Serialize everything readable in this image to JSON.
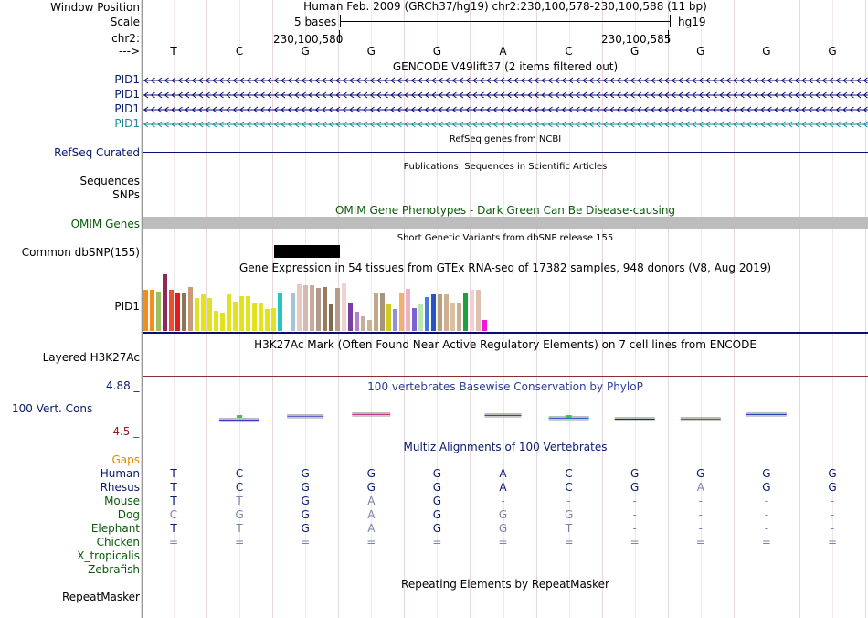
{
  "ruler": {
    "labels": {
      "window_position": "Window Position",
      "scale": "Scale",
      "chr": "chr2:",
      "arrow": "--->"
    },
    "title": "Human Feb. 2009 (GRCh37/hg19)   chr2:230,100,578-230,100,588 (11 bp)",
    "scale_text": "5 bases",
    "assembly": "hg19",
    "pos_left": "230,100,580",
    "pos_right": "230,100,585",
    "bases": [
      "T",
      "C",
      "G",
      "G",
      "G",
      "A",
      "C",
      "G",
      "G",
      "G",
      "G"
    ]
  },
  "gencode": {
    "title": "GENCODE V49lift37 (2 items filtered out)",
    "rows": [
      "PID1",
      "PID1",
      "PID1",
      "PID1"
    ]
  },
  "refseq": {
    "label": "RefSeq Curated",
    "title": "RefSeq genes from NCBI"
  },
  "publications": {
    "title": "Publications: Sequences in Scientific Articles",
    "label_seq": "Sequences",
    "label_snp": "SNPs"
  },
  "omim": {
    "title": "OMIM Gene Phenotypes - Dark Green Can Be Disease-causing",
    "label": "OMIM Genes"
  },
  "dbsnp": {
    "title": "Short Genetic Variants from dbSNP release 155",
    "label": "Common dbSNP(155)"
  },
  "gtex": {
    "title": "Gene Expression in 54 tissues from GTEx RNA-seq of 17382 samples, 948 donors (V8, Aug 2019)",
    "label": "PID1",
    "bars": [
      {
        "v": 0.72,
        "c": "#f28e1d"
      },
      {
        "v": 0.72,
        "c": "#f28e1d"
      },
      {
        "v": 0.7,
        "c": "#9fbf5f"
      },
      {
        "v": 1.0,
        "c": "#8b2a5b"
      },
      {
        "v": 0.72,
        "c": "#e8512c"
      },
      {
        "v": 0.68,
        "c": "#e31a1c"
      },
      {
        "v": 0.67,
        "c": "#8a7555"
      },
      {
        "v": 0.77,
        "c": "#c89b78"
      },
      {
        "v": 0.58,
        "c": "#e2e21e"
      },
      {
        "v": 0.64,
        "c": "#e2e21e"
      },
      {
        "v": 0.58,
        "c": "#e2e21e"
      },
      {
        "v": 0.36,
        "c": "#e2e21e"
      },
      {
        "v": 0.32,
        "c": "#e2e21e"
      },
      {
        "v": 0.64,
        "c": "#e2e21e"
      },
      {
        "v": 0.52,
        "c": "#e2e21e"
      },
      {
        "v": 0.62,
        "c": "#e2e21e"
      },
      {
        "v": 0.62,
        "c": "#e2e21e"
      },
      {
        "v": 0.5,
        "c": "#e2e21e"
      },
      {
        "v": 0.5,
        "c": "#e2e21e"
      },
      {
        "v": 0.38,
        "c": "#e2e21e"
      },
      {
        "v": 0.4,
        "c": "#e2e21e"
      },
      {
        "v": 0.68,
        "c": "#27c4c4"
      },
      {
        "v": 0.0,
        "c": "#ffffff"
      },
      {
        "v": 0.66,
        "c": "#a3c3d9"
      },
      {
        "v": 0.82,
        "c": "#e8c9bf"
      },
      {
        "v": 0.8,
        "c": "#d8b8b5"
      },
      {
        "v": 0.8,
        "c": "#c9a99a"
      },
      {
        "v": 0.76,
        "c": "#b09a8c"
      },
      {
        "v": 0.78,
        "c": "#9a7a5d"
      },
      {
        "v": 0.46,
        "c": "#7f6a4a"
      },
      {
        "v": 0.76,
        "c": "#b49e8a"
      },
      {
        "v": 0.84,
        "c": "#f0d0d0"
      },
      {
        "v": 0.5,
        "c": "#7a3fa0"
      },
      {
        "v": 0.34,
        "c": "#b080c8"
      },
      {
        "v": 0.26,
        "c": "#c0b0a0"
      },
      {
        "v": 0.2,
        "c": "#c8b49a"
      },
      {
        "v": 0.68,
        "c": "#c0a888"
      },
      {
        "v": 0.68,
        "c": "#a89478"
      },
      {
        "v": 0.46,
        "c": "#cccc22"
      },
      {
        "v": 0.38,
        "c": "#8f8fe0"
      },
      {
        "v": 0.68,
        "c": "#f0b070"
      },
      {
        "v": 0.74,
        "c": "#f0b0c0"
      },
      {
        "v": 0.4,
        "c": "#8060d0"
      },
      {
        "v": 0.48,
        "c": "#b8e8b0"
      },
      {
        "v": 0.6,
        "c": "#4878e8"
      },
      {
        "v": 0.64,
        "c": "#2850c8"
      },
      {
        "v": 0.64,
        "c": "#b8a080"
      },
      {
        "v": 0.64,
        "c": "#d0b090"
      },
      {
        "v": 0.5,
        "c": "#d8c0a0"
      },
      {
        "v": 0.5,
        "c": "#c8b090"
      },
      {
        "v": 0.66,
        "c": "#20a040"
      },
      {
        "v": 0.72,
        "c": "#f0d0d0"
      },
      {
        "v": 0.72,
        "c": "#e0c0b0"
      },
      {
        "v": 0.2,
        "c": "#f018d8"
      }
    ]
  },
  "h3k27ac": {
    "title": "H3K27Ac Mark (Often Found Near Active Regulatory Elements) on 7 cell lines from ENCODE",
    "label": "Layered H3K27Ac"
  },
  "phylop": {
    "title": "100 vertebrates Basewise Conservation by PhyloP",
    "label": "100 Vert. Cons",
    "max": "4.88 _",
    "min": "-4.5 _"
  },
  "multiz": {
    "title": "Multiz Alignments of 100 Vertebrates",
    "gaps_label": "Gaps",
    "species": [
      {
        "name": "Human",
        "bases": [
          "T",
          "C",
          "G",
          "G",
          "G",
          "A",
          "C",
          "G",
          "G",
          "G",
          "G"
        ],
        "faint": [
          0,
          0,
          0,
          0,
          0,
          0,
          0,
          0,
          0,
          0,
          0
        ]
      },
      {
        "name": "Rhesus",
        "bases": [
          "T",
          "C",
          "G",
          "G",
          "G",
          "A",
          "C",
          "G",
          "A",
          "G",
          "G"
        ],
        "faint": [
          0,
          0,
          0,
          0,
          0,
          0,
          0,
          0,
          1,
          0,
          0
        ]
      },
      {
        "name": "Mouse",
        "bases": [
          "T",
          "T",
          "G",
          "A",
          "G",
          "-",
          "-",
          "-",
          "-",
          "-",
          "-"
        ],
        "faint": [
          0,
          1,
          0,
          1,
          0,
          1,
          1,
          1,
          1,
          1,
          1
        ]
      },
      {
        "name": "Dog",
        "bases": [
          "C",
          "G",
          "G",
          "A",
          "G",
          "G",
          "G",
          "-",
          "-",
          "-",
          "-"
        ],
        "faint": [
          1,
          1,
          0,
          1,
          0,
          1,
          1,
          1,
          1,
          1,
          1
        ]
      },
      {
        "name": "Elephant",
        "bases": [
          "T",
          "T",
          "G",
          "A",
          "G",
          "G",
          "T",
          "-",
          "-",
          "-",
          "-"
        ],
        "faint": [
          0,
          1,
          0,
          1,
          0,
          1,
          1,
          1,
          1,
          1,
          1
        ]
      },
      {
        "name": "Chicken",
        "bases": [
          "=",
          "=",
          "=",
          "=",
          "=",
          "=",
          "=",
          "=",
          "=",
          "=",
          "="
        ],
        "faint": [
          1,
          1,
          1,
          1,
          1,
          1,
          1,
          1,
          1,
          1,
          1
        ]
      },
      {
        "name": "X_tropicalis",
        "bases": [],
        "faint": []
      },
      {
        "name": "Zebrafish",
        "bases": [],
        "faint": []
      }
    ]
  },
  "repeatmasker": {
    "title": "Repeating Elements by RepeatMasker",
    "label": "RepeatMasker"
  },
  "colors": {
    "navy": "#0a1a6e",
    "gencode": "#0c0c78",
    "gencode_last": "#1f8a9a",
    "omim_bar": "#bdbdbd",
    "phylop_title": "#2c3c96",
    "orange": "#e08a00",
    "darkgreen": "#0b5a0b"
  }
}
